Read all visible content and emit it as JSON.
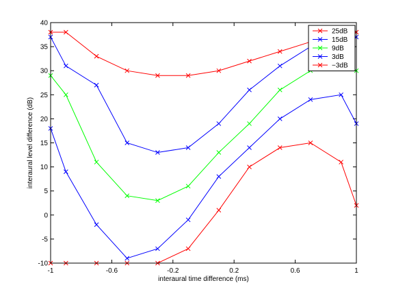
{
  "chart_data": {
    "type": "line",
    "xlabel": "interaural time difference (ms)",
    "ylabel": "interaural level difference (dB)",
    "xlim": [
      -1,
      1
    ],
    "ylim": [
      -10,
      40
    ],
    "x_ticks": [
      -1,
      -0.6,
      -0.2,
      0.2,
      0.6,
      1
    ],
    "x_tick_labels": [
      "-1",
      "-0.6",
      "-0.2",
      "0.2",
      "0.6",
      "1"
    ],
    "y_ticks": [
      -10,
      -5,
      0,
      5,
      10,
      15,
      20,
      25,
      30,
      35,
      40
    ],
    "y_tick_labels": [
      "-10",
      "-5",
      "0",
      "5",
      "10",
      "15",
      "20",
      "25",
      "30",
      "35",
      "40"
    ],
    "grid": false,
    "legend_position": "top-right",
    "marker": "x",
    "series": [
      {
        "name": "25dB",
        "color": "#ff0000",
        "x": [
          -1,
          -0.9,
          -0.7,
          -0.5,
          -0.3,
          -0.1,
          0.1,
          0.3,
          0.5,
          0.7,
          0.9,
          1
        ],
        "y": [
          38,
          38,
          33,
          30,
          29,
          29,
          30,
          32,
          34,
          36,
          38,
          38
        ]
      },
      {
        "name": "15dB",
        "color": "#0000ff",
        "x": [
          -1,
          -0.9,
          -0.7,
          -0.5,
          -0.3,
          -0.1,
          0.1,
          0.3,
          0.5,
          0.7,
          0.9,
          1
        ],
        "y": [
          37,
          31,
          27,
          15,
          13,
          14,
          19,
          26,
          31,
          35,
          36,
          37
        ]
      },
      {
        "name": "9dB",
        "color": "#00ff00",
        "x": [
          -1,
          -0.9,
          -0.7,
          -0.5,
          -0.3,
          -0.1,
          0.1,
          0.3,
          0.5,
          0.7,
          0.9,
          1
        ],
        "y": [
          29,
          25,
          11,
          4,
          3,
          6,
          13,
          19,
          26,
          30,
          31,
          30
        ]
      },
      {
        "name": "3dB",
        "color": "#0000ff",
        "x": [
          -1,
          -0.9,
          -0.7,
          -0.5,
          -0.3,
          -0.1,
          0.1,
          0.3,
          0.5,
          0.7,
          0.9,
          1
        ],
        "y": [
          18,
          9,
          -2,
          -9,
          -7,
          -1,
          8,
          14,
          20,
          24,
          25,
          19
        ]
      },
      {
        "name": "−3dB",
        "color": "#ff0000",
        "x": [
          -1,
          -0.9,
          -0.7,
          -0.5,
          -0.3,
          -0.1,
          0.1,
          0.3,
          0.5,
          0.7,
          0.9,
          1
        ],
        "y": [
          -10,
          -10,
          -10,
          -10,
          -10,
          -7,
          1,
          10,
          14,
          15,
          11,
          2
        ]
      }
    ]
  }
}
